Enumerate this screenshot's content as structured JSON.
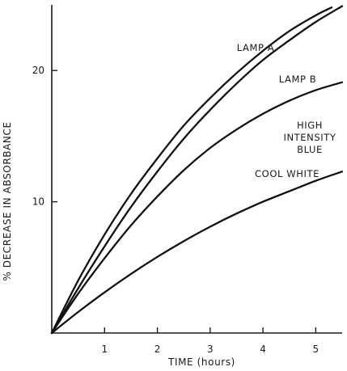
{
  "chart_data": {
    "type": "line",
    "title": "",
    "xlabel": "TIME (hours)",
    "ylabel": "% DECREASE IN ABSORBANCE",
    "xlim": [
      0,
      5.5
    ],
    "ylim": [
      0,
      25
    ],
    "x_ticks": [
      1,
      2,
      3,
      4,
      5
    ],
    "y_ticks": [
      10,
      20
    ],
    "grid": false,
    "legend": "none",
    "series": [
      {
        "name": "LAMP A",
        "color": "#111111",
        "x": [
          0,
          0.5,
          1,
          1.5,
          2,
          2.5,
          3,
          3.5,
          4,
          4.5,
          5,
          5.3
        ],
        "y": [
          0,
          4.0,
          7.5,
          10.6,
          13.3,
          15.8,
          17.9,
          19.8,
          21.5,
          23.0,
          24.2,
          24.8
        ]
      },
      {
        "name": "LAMP B",
        "color": "#111111",
        "x": [
          0,
          0.5,
          1,
          1.5,
          2,
          2.5,
          3,
          3.5,
          4,
          4.5,
          5,
          5.5
        ],
        "y": [
          0,
          3.4,
          6.6,
          9.6,
          12.3,
          14.8,
          17.0,
          19.0,
          20.8,
          22.3,
          23.7,
          24.9
        ]
      },
      {
        "name": "HIGH INTENSITY BLUE",
        "name_lines": [
          "HIGH",
          "INTENSITY",
          "BLUE"
        ],
        "color": "#111111",
        "x": [
          0,
          0.5,
          1,
          1.5,
          2,
          2.5,
          3,
          3.5,
          4,
          4.5,
          5,
          5.5
        ],
        "y": [
          0,
          3.0,
          5.7,
          8.2,
          10.4,
          12.4,
          14.1,
          15.5,
          16.7,
          17.7,
          18.5,
          19.1
        ]
      },
      {
        "name": "COOL WHITE",
        "color": "#111111",
        "x": [
          0,
          0.5,
          1,
          1.5,
          2,
          2.5,
          3,
          3.5,
          4,
          4.5,
          5,
          5.5
        ],
        "y": [
          0,
          1.6,
          3.1,
          4.5,
          5.8,
          7.0,
          8.1,
          9.1,
          10.0,
          10.8,
          11.6,
          12.3
        ]
      }
    ]
  }
}
